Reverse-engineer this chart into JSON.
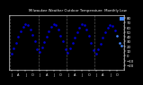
{
  "title": "Milwaukee Weather Outdoor Temperature",
  "subtitle": "Monthly Low",
  "dot_color": "#0000cc",
  "dot_size": 1.8,
  "bg_color": "#000000",
  "plot_bg_color": "#000000",
  "grid_color": "#555555",
  "highlight_color": "#4488ff",
  "tick_color": "#ffffff",
  "title_color": "#ffffff",
  "spine_color": "#ffffff",
  "ylim": [
    -30,
    85
  ],
  "yticks": [
    -20,
    -10,
    0,
    10,
    20,
    30,
    40,
    50,
    60,
    70,
    80
  ],
  "monthly_lows": [
    5,
    16,
    28,
    40,
    51,
    61,
    67,
    65,
    56,
    44,
    30,
    14,
    8,
    18,
    29,
    40,
    51,
    61,
    67,
    65,
    56,
    43,
    30,
    13,
    6,
    16,
    27,
    38,
    49,
    60,
    66,
    64,
    55,
    43,
    28,
    12,
    4,
    14,
    25,
    38,
    50,
    59,
    65,
    63,
    54,
    42,
    28,
    22
  ],
  "highlight_last": 3,
  "num_years": 4,
  "months_per_year": 12,
  "xtick_every": 3
}
